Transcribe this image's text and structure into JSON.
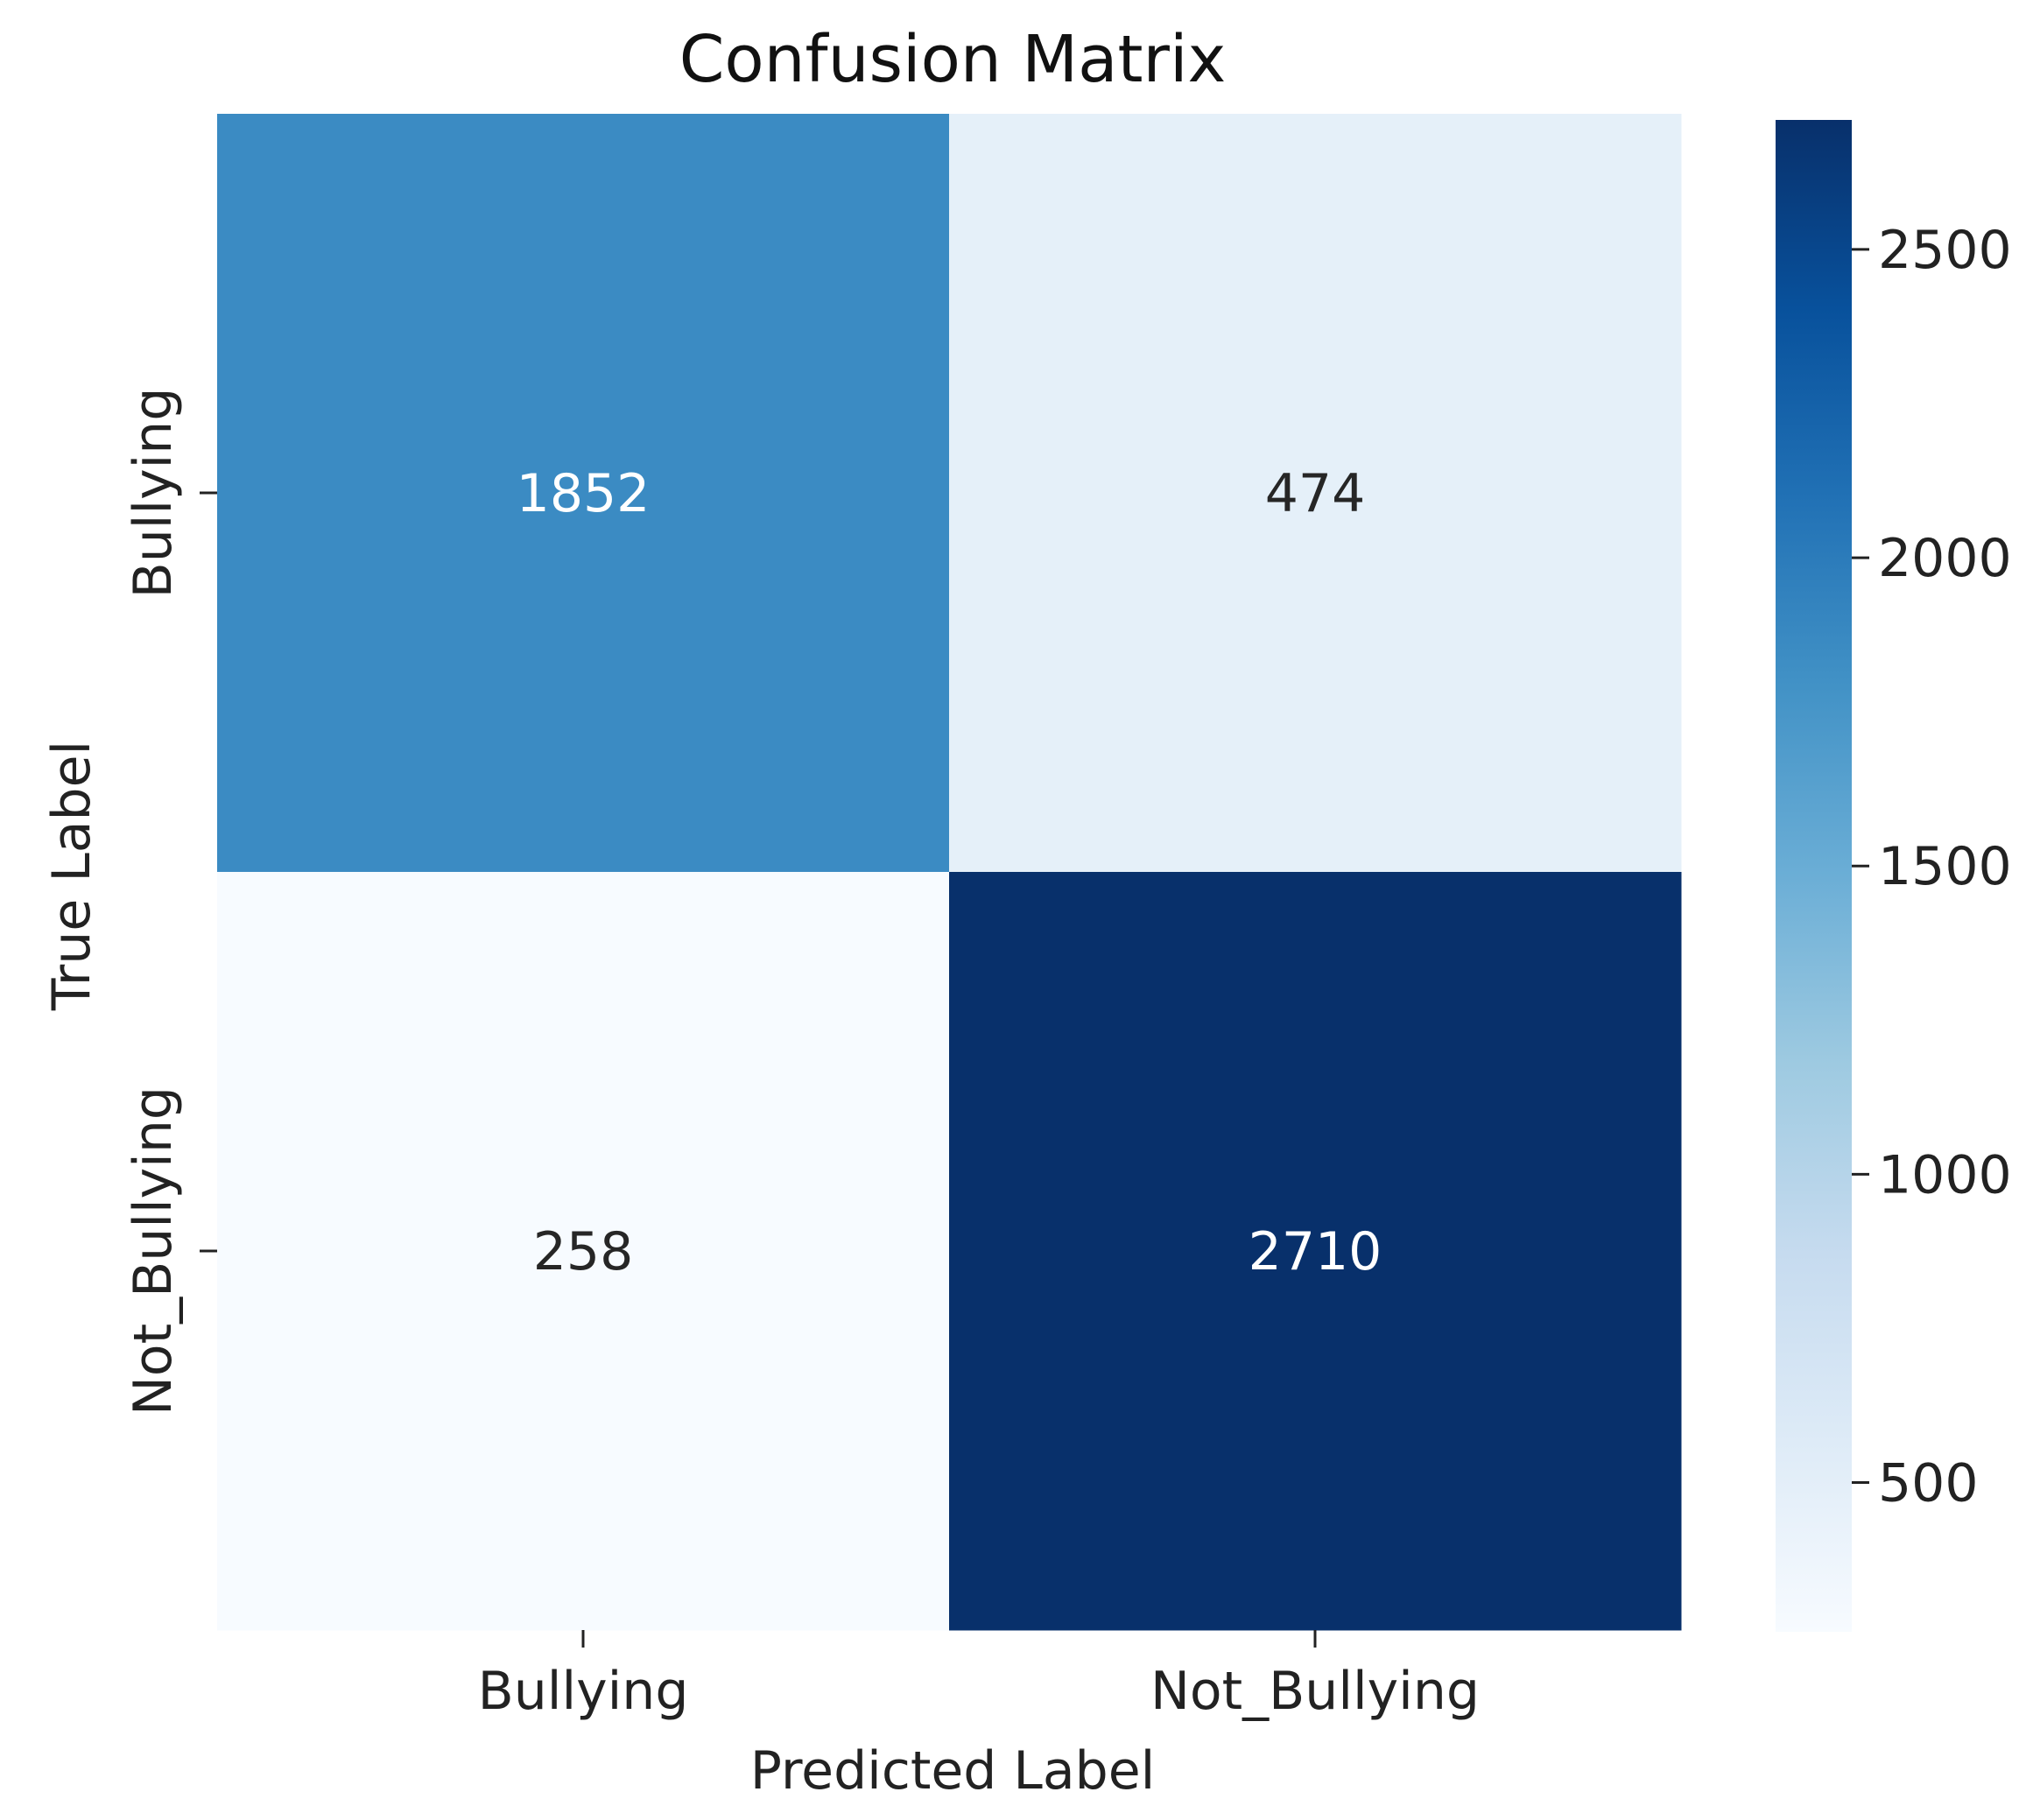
{
  "chart_data": {
    "type": "heatmap",
    "title": "Confusion Matrix",
    "xlabel": "Predicted Label",
    "ylabel": "True Label",
    "x_categories": [
      "Bullying",
      "Not_Bullying"
    ],
    "y_categories": [
      "Bullying",
      "Not_Bullying"
    ],
    "values": [
      [
        1852,
        474
      ],
      [
        258,
        2710
      ]
    ],
    "colormap": "Blues",
    "colorbar": {
      "range": [
        258,
        2710
      ],
      "ticks": [
        500,
        1000,
        1500,
        2000,
        2500
      ],
      "tick_labels": [
        "500",
        "1000",
        "1500",
        "2000",
        "2500"
      ]
    },
    "grid": false,
    "legend": "colorbar-right"
  }
}
